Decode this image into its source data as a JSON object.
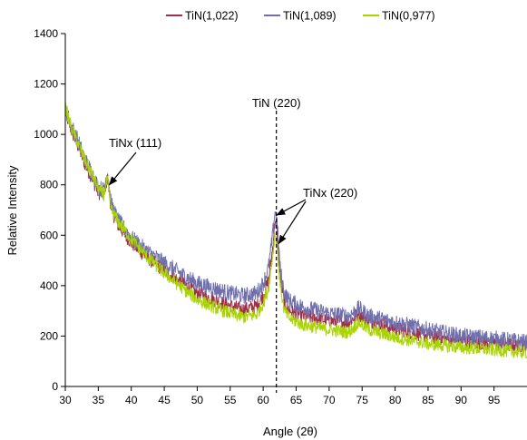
{
  "chart_data": {
    "type": "line",
    "xlabel": "Angle (2θ)",
    "ylabel": "Relative Intensity",
    "xlim": [
      30,
      100
    ],
    "ylim": [
      0,
      1400
    ],
    "xticks": [
      30,
      35,
      40,
      45,
      50,
      55,
      60,
      65,
      70,
      75,
      80,
      85,
      90,
      95
    ],
    "yticks": [
      0,
      200,
      400,
      600,
      800,
      1000,
      1200,
      1400
    ],
    "grid": false,
    "legend_position": "top",
    "series": [
      {
        "name": "TiN(1,022)",
        "color": "#a0304a",
        "noise": 28,
        "x": [
          30,
          31,
          32,
          33,
          34,
          35,
          35.8,
          36.4,
          37,
          38,
          40,
          42,
          45,
          48,
          50,
          53,
          55,
          57,
          59,
          60,
          60.8,
          61.4,
          61.8,
          62.1,
          62.6,
          63.2,
          64,
          66,
          70,
          73,
          74.5,
          76,
          80,
          85,
          90,
          95,
          100
        ],
        "y": [
          1090,
          1010,
          950,
          880,
          830,
          770,
          760,
          830,
          700,
          640,
          570,
          520,
          460,
          405,
          370,
          340,
          320,
          305,
          320,
          360,
          420,
          540,
          660,
          610,
          430,
          330,
          300,
          280,
          260,
          255,
          290,
          260,
          230,
          200,
          180,
          170,
          160
        ]
      },
      {
        "name": "TiN(1,089)",
        "color": "#6f6fae",
        "noise": 32,
        "x": [
          30,
          31,
          32,
          33,
          34,
          35,
          35.8,
          36.4,
          37,
          38,
          40,
          42,
          45,
          48,
          50,
          53,
          55,
          57,
          59,
          60,
          60.8,
          61.4,
          61.8,
          62.1,
          62.6,
          63.2,
          64,
          66,
          70,
          73,
          74.5,
          76,
          80,
          85,
          90,
          95,
          100
        ],
        "y": [
          1100,
          1030,
          970,
          900,
          850,
          790,
          780,
          850,
          720,
          660,
          590,
          545,
          490,
          440,
          410,
          385,
          370,
          360,
          370,
          410,
          470,
          590,
          700,
          650,
          460,
          370,
          340,
          315,
          290,
          280,
          310,
          280,
          255,
          225,
          200,
          190,
          175
        ]
      },
      {
        "name": "TiN(0,977)",
        "color": "#a8d400",
        "noise": 26,
        "x": [
          30,
          31,
          32,
          33,
          34,
          35,
          35.8,
          36.4,
          37,
          38,
          40,
          42,
          45,
          48,
          50,
          53,
          55,
          57,
          59,
          60,
          60.8,
          61.4,
          61.8,
          62.1,
          62.6,
          63.2,
          64,
          66,
          70,
          73,
          74.5,
          76,
          80,
          85,
          90,
          95,
          100
        ],
        "y": [
          1110,
          1020,
          960,
          895,
          845,
          785,
          760,
          820,
          700,
          655,
          585,
          525,
          450,
          385,
          345,
          310,
          290,
          275,
          285,
          330,
          390,
          510,
          610,
          560,
          400,
          300,
          270,
          245,
          225,
          215,
          255,
          225,
          195,
          170,
          155,
          145,
          135
        ]
      }
    ],
    "reference_line": {
      "x": 62,
      "style": "dashed"
    },
    "annotations": [
      {
        "text": "TiN (220)",
        "target_x": 62,
        "target_y": 1400
      },
      {
        "text": "TiNx (111)",
        "target_x": 36.4,
        "target_y": 800
      },
      {
        "text": "TiNx (220)",
        "target_x": 61.8,
        "target_y": 680
      },
      {
        "text": "TiNx (220)",
        "target_x": 62.1,
        "target_y": 560
      }
    ]
  }
}
